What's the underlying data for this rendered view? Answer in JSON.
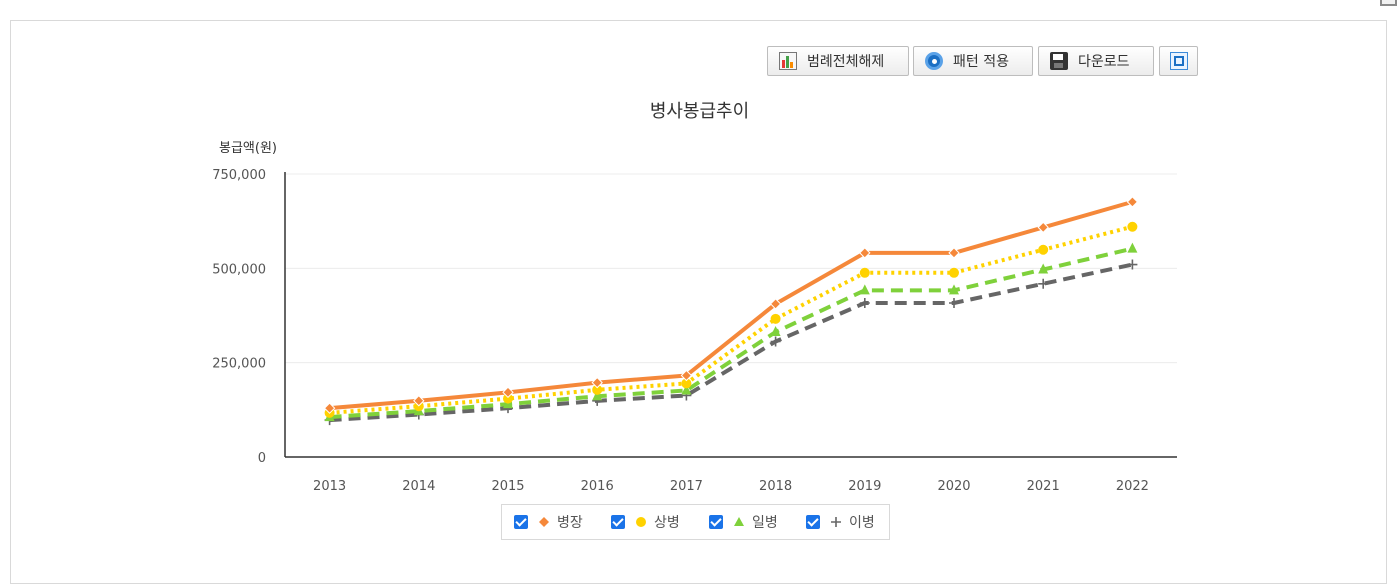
{
  "toolbar": {
    "legend_toggle_label": "범례전체해제",
    "pattern_label": "패턴 적용",
    "download_label": "다운로드"
  },
  "chart_data": {
    "type": "line",
    "title": "병사봉급추이",
    "ylabel": "봉급액(원)",
    "xlabel": "",
    "categories": [
      "2013",
      "2014",
      "2015",
      "2016",
      "2017",
      "2018",
      "2019",
      "2020",
      "2021",
      "2022"
    ],
    "ylim": [
      0,
      750000
    ],
    "yticks": [
      0,
      250000,
      500000,
      750000
    ],
    "ytick_labels": [
      "0",
      "250,000",
      "500,000",
      "750,000"
    ],
    "grid": true,
    "legend_position": "bottom",
    "series": [
      {
        "name": "병장",
        "color": "#f5883a",
        "marker": "diamond",
        "dash": "solid",
        "values": [
          129400,
          149100,
          171400,
          197000,
          216000,
          405700,
          540900,
          540900,
          608500,
          676100
        ]
      },
      {
        "name": "상병",
        "color": "#ffd200",
        "marker": "circle",
        "dash": "dotted",
        "values": [
          117000,
          134600,
          154800,
          178000,
          195000,
          366200,
          488200,
          488200,
          549200,
          610200
        ]
      },
      {
        "name": "일병",
        "color": "#7fd13b",
        "marker": "triangle",
        "dash": "dashed",
        "values": [
          105800,
          121700,
          140000,
          161000,
          176400,
          331300,
          441700,
          441700,
          496900,
          552100
        ]
      },
      {
        "name": "이병",
        "color": "#666666",
        "marker": "plus",
        "dash": "dashed",
        "values": [
          97800,
          112500,
          129400,
          148800,
          163000,
          306100,
          408100,
          408100,
          459100,
          510100
        ]
      }
    ]
  }
}
